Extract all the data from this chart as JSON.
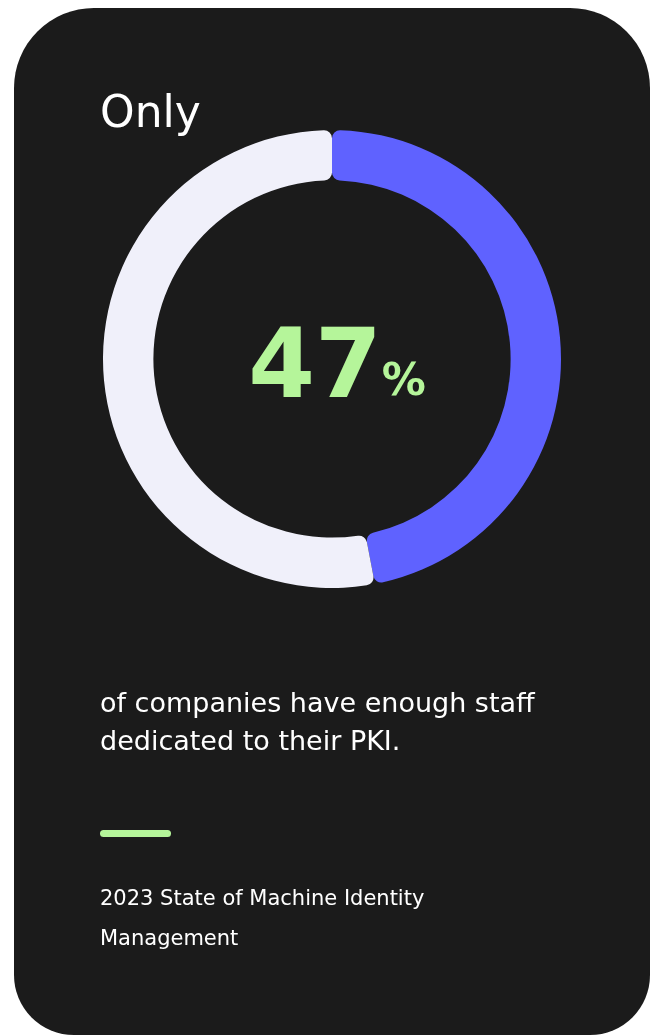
{
  "chart_data": {
    "type": "donut",
    "title": "Only",
    "categories": [
      null,
      null
    ],
    "values": [
      47,
      53
    ],
    "colors": [
      "#5f62ff",
      "#f0f0fa"
    ],
    "subtitle": "47%",
    "annotations": [
      "of companies have enough staff dedicated to their PKI.",
      "2023 State of Machine Identity Management"
    ]
  }
}
